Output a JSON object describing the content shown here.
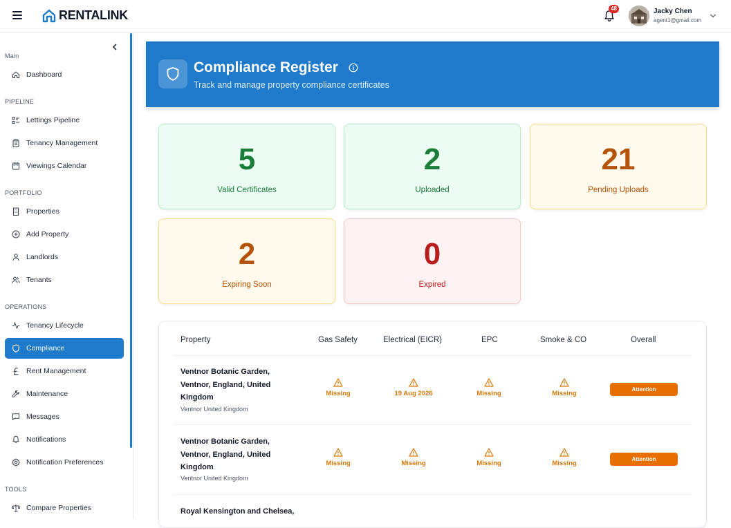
{
  "app": {
    "name": "RENTALINK"
  },
  "header": {
    "notification_count": "48",
    "user": {
      "name": "Jacky Chen",
      "email": "agent1@gmail.com"
    }
  },
  "sidebar": {
    "sections": [
      {
        "label": "Main",
        "items": [
          {
            "label": "Dashboard",
            "icon": "home-icon"
          }
        ]
      },
      {
        "label": "PIPELINE",
        "items": [
          {
            "label": "Lettings Pipeline",
            "icon": "list-icon"
          },
          {
            "label": "Tenancy Management",
            "icon": "clipboard-icon"
          },
          {
            "label": "Viewings Calendar",
            "icon": "calendar-icon"
          }
        ]
      },
      {
        "label": "PORTFOLIO",
        "items": [
          {
            "label": "Properties",
            "icon": "building-icon"
          },
          {
            "label": "Add Property",
            "icon": "plus-circle-icon"
          },
          {
            "label": "Landlords",
            "icon": "user-icon"
          },
          {
            "label": "Tenants",
            "icon": "users-icon"
          }
        ]
      },
      {
        "label": "OPERATIONS",
        "items": [
          {
            "label": "Tenancy Lifecycle",
            "icon": "activity-icon"
          },
          {
            "label": "Compliance",
            "icon": "shield-icon",
            "active": true
          },
          {
            "label": "Rent Management",
            "icon": "pound-icon"
          },
          {
            "label": "Maintenance",
            "icon": "wrench-icon"
          },
          {
            "label": "Messages",
            "icon": "message-icon"
          },
          {
            "label": "Notifications",
            "icon": "bell-icon"
          },
          {
            "label": "Notification Preferences",
            "icon": "gear-icon"
          }
        ]
      },
      {
        "label": "TOOLS",
        "items": [
          {
            "label": "Compare Properties",
            "icon": "scale-icon"
          }
        ]
      }
    ]
  },
  "page": {
    "title": "Compliance Register",
    "subtitle": "Track and manage property compliance certificates"
  },
  "stats": [
    {
      "value": "5",
      "label": "Valid Certificates",
      "color": "#1c7c3a"
    },
    {
      "value": "2",
      "label": "Uploaded",
      "color": "#1c7c3a"
    },
    {
      "value": "21",
      "label": "Pending Uploads",
      "color": "#b45309"
    },
    {
      "value": "2",
      "label": "Expiring Soon",
      "color": "#b45309"
    },
    {
      "value": "0",
      "label": "Expired",
      "color": "#b91c1c"
    }
  ],
  "table": {
    "columns": [
      "Property",
      "Gas Safety",
      "Electrical (EICR)",
      "EPC",
      "Smoke & CO",
      "Overall"
    ],
    "rows": [
      {
        "name_lines": [
          "Ventnor Botanic Garden,",
          "Ventnor, England, United",
          "Kingdom"
        ],
        "location": "Ventnor United Kingdom",
        "gas": "Missing",
        "electrical": "19 Aug 2026",
        "epc": "Missing",
        "smoke": "Missing",
        "overall": "Attention"
      },
      {
        "name_lines": [
          "Ventnor Botanic Garden,",
          "Ventnor, England, United",
          "Kingdom"
        ],
        "location": "Ventnor United Kingdom",
        "gas": "Missing",
        "electrical": "Missing",
        "epc": "Missing",
        "smoke": "Missing",
        "overall": "Attention"
      },
      {
        "name_lines": [
          "Royal Kensington and Chelsea,"
        ]
      }
    ]
  },
  "colors": {
    "brand": "#1f7acb",
    "warning": "#d97706",
    "attention": "#e76f00"
  }
}
